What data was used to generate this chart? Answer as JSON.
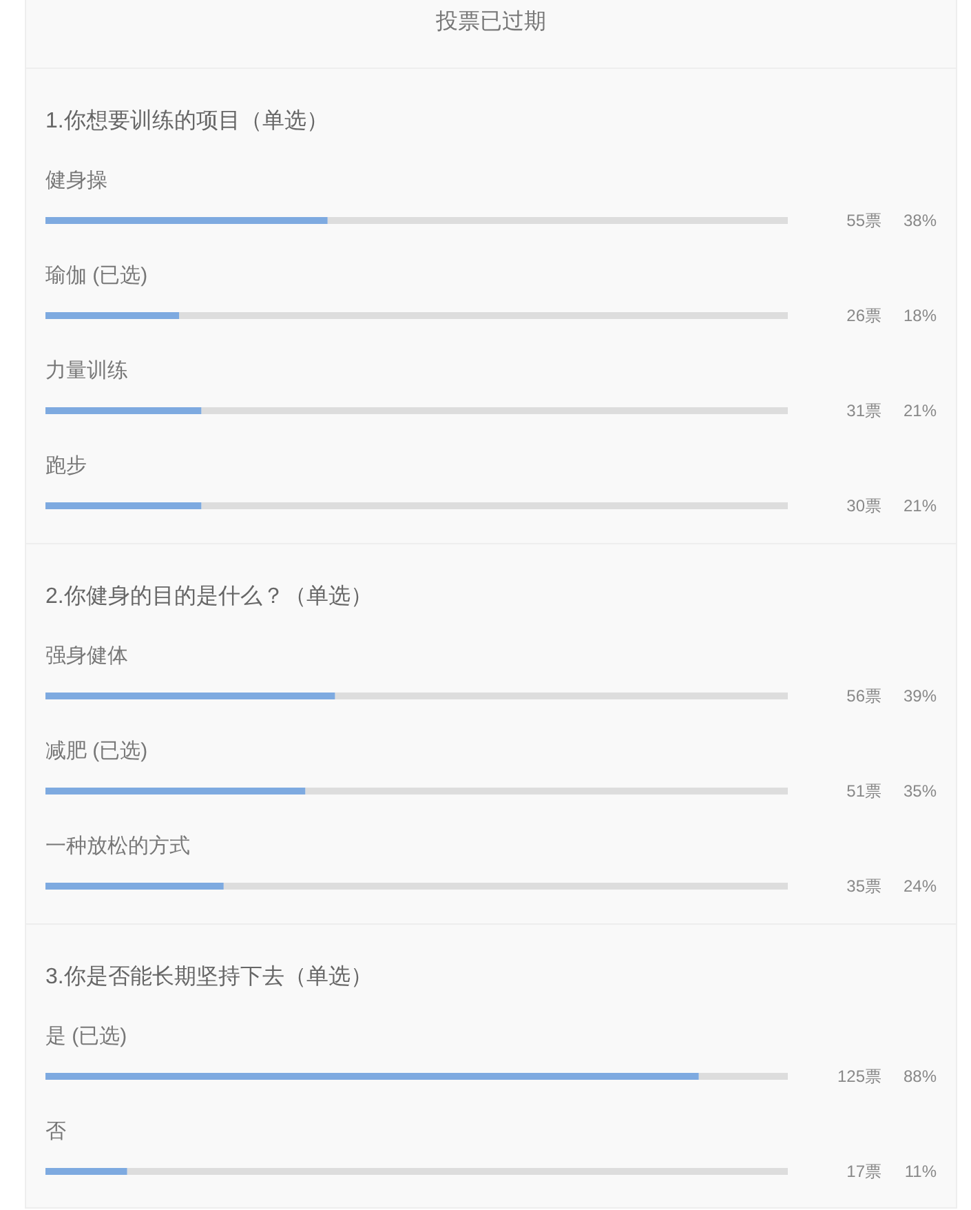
{
  "chart_data": [
    {
      "type": "other",
      "title": "投票已过期"
    },
    {
      "type": "bar",
      "orientation": "horizontal",
      "title": "1.你想要训练的项目（单选）",
      "categories": [
        "健身操",
        "瑜伽 (已选)",
        "力量训练",
        "跑步"
      ],
      "values": [
        38,
        18,
        21,
        21
      ],
      "value_labels": [
        "38%",
        "18%",
        "21%",
        "21%"
      ],
      "annotations": [
        "55票",
        "26票",
        "31票",
        "30票"
      ],
      "color": "#7eaae0",
      "xlim": [
        0,
        100
      ]
    },
    {
      "type": "bar",
      "orientation": "horizontal",
      "title": "2.你健身的目的是什么？（单选）",
      "categories": [
        "强身健体",
        "减肥 (已选)",
        "一种放松的方式"
      ],
      "values": [
        39,
        35,
        24
      ],
      "value_labels": [
        "39%",
        "35%",
        "24%"
      ],
      "annotations": [
        "56票",
        "51票",
        "35票"
      ],
      "color": "#7eaae0",
      "xlim": [
        0,
        100
      ]
    },
    {
      "type": "bar",
      "orientation": "horizontal",
      "title": "3.你是否能长期坚持下去（单选）",
      "categories": [
        "是 (已选)",
        "否"
      ],
      "values": [
        88,
        11
      ],
      "value_labels": [
        "88%",
        "11%"
      ],
      "annotations": [
        "125票",
        "17票"
      ],
      "color": "#7eaae0",
      "xlim": [
        0,
        100
      ]
    }
  ]
}
